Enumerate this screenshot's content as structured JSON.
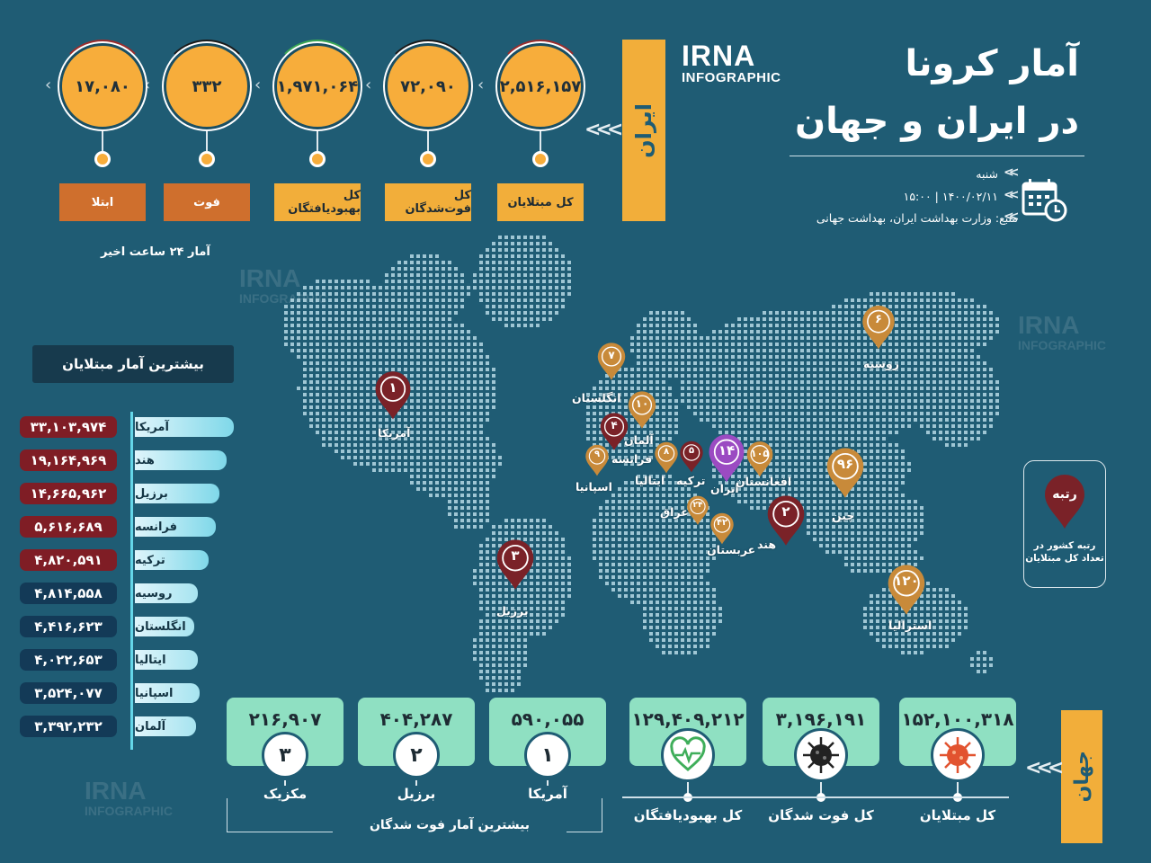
{
  "header": {
    "title_line1": "آمار کرونا",
    "title_line2": "در ایران و جهان",
    "logo_word": "IRNA",
    "logo_sub": "INFOGRAPHIC",
    "day": "شنبه",
    "datetime": "۱۴۰۰/۰۲/۱۱ | ۱۵:۰۰",
    "source": "منبع: وزارت بهداشت ایران، بهداشت جهانی",
    "calendar_icon": "calendar-clock-icon"
  },
  "iran": {
    "banner": "ایران",
    "last24_note": "آمار ۲۴ ساعت اخیر",
    "stats": [
      {
        "value": "۲,۵۱۶,۱۵۷",
        "label": "کل مبتلایان",
        "arc": "#9b2d2d",
        "label_style": "orange"
      },
      {
        "value": "۷۲,۰۹۰",
        "label": "کل فوت‌شدگان",
        "arc": "#1b1b1b",
        "label_style": "orange"
      },
      {
        "value": "۱,۹۷۱,۰۶۴",
        "label": "کل بهبودیافتگان",
        "arc": "#3aa655",
        "label_style": "orange"
      },
      {
        "value": "۳۳۲",
        "label": "فوت",
        "arc": "#1b1b1b",
        "label_style": "brown"
      },
      {
        "value": "۱۷,۰۸۰",
        "label": "ابتلا",
        "arc": "#9b2d2d",
        "label_style": "brown"
      }
    ]
  },
  "top_cases": {
    "title": "بیشترین آمار مبتلایان",
    "rows": [
      {
        "country": "آمریکا",
        "value": "۳۳,۱۰۳,۹۷۴",
        "color": "#7f1d25"
      },
      {
        "country": "هند",
        "value": "۱۹,۱۶۴,۹۶۹",
        "color": "#7f1d25"
      },
      {
        "country": "برزیل",
        "value": "۱۴,۶۶۵,۹۶۲",
        "color": "#7f1d25"
      },
      {
        "country": "فرانسه",
        "value": "۵,۶۱۶,۶۸۹",
        "color": "#7f1d25"
      },
      {
        "country": "ترکیه",
        "value": "۴,۸۲۰,۵۹۱",
        "color": "#7f1d25"
      },
      {
        "country": "روسیه",
        "value": "۴,۸۱۴,۵۵۸",
        "color": "#133a57"
      },
      {
        "country": "انگلستان",
        "value": "۴,۴۱۶,۶۲۳",
        "color": "#133a57"
      },
      {
        "country": "ایتالیا",
        "value": "۴,۰۲۲,۶۵۳",
        "color": "#133a57"
      },
      {
        "country": "اسپانیا",
        "value": "۳,۵۲۴,۰۷۷",
        "color": "#133a57"
      },
      {
        "country": "آلمان",
        "value": "۳,۳۹۲,۲۳۲",
        "color": "#133a57"
      }
    ]
  },
  "map_pins": [
    {
      "rank": "۱",
      "country": "آمریکا",
      "color": "#7a2228"
    },
    {
      "rank": "۳",
      "country": "برزیل",
      "color": "#7a2228"
    },
    {
      "rank": "۷",
      "country": "انگلستان",
      "color": "#c88a3a"
    },
    {
      "rank": "۱۰",
      "country": "آلمان",
      "color": "#c88a3a"
    },
    {
      "rank": "۴",
      "country": "فرانسه",
      "color": "#7a2228"
    },
    {
      "rank": "۹",
      "country": "اسپانیا",
      "color": "#c88a3a"
    },
    {
      "rank": "۸",
      "country": "ایتالیا",
      "color": "#c88a3a"
    },
    {
      "rank": "۵",
      "country": "ترکیه",
      "color": "#7a2228"
    },
    {
      "rank": "۱۴",
      "country": "ایران",
      "color": "#9b4bc2"
    },
    {
      "rank": "۱۰۵",
      "country": "افغانستان",
      "color": "#c88a3a"
    },
    {
      "rank": "۲۴",
      "country": "عراق",
      "color": "#c88a3a"
    },
    {
      "rank": "۴۲",
      "country": "عربستان",
      "color": "#c88a3a"
    },
    {
      "rank": "۲",
      "country": "هند",
      "color": "#7a2228"
    },
    {
      "rank": "۹۶",
      "country": "چین",
      "color": "#c88a3a"
    },
    {
      "rank": "۶",
      "country": "روسیه",
      "color": "#c88a3a"
    },
    {
      "rank": "۱۲۰",
      "country": "استرالیا",
      "color": "#c88a3a"
    }
  ],
  "legend": {
    "pin_text": "رتبه",
    "description": "رتبه کشور در تعداد کل مبتلایان"
  },
  "world": {
    "banner": "جهان",
    "stats": [
      {
        "value": "۱۵۲,۱۰۰,۳۱۸",
        "label": "کل مبتلایان",
        "icon": "virus-red-icon"
      },
      {
        "value": "۳,۱۹۶,۱۹۱",
        "label": "کل فوت شدگان",
        "icon": "virus-black-icon"
      },
      {
        "value": "۱۲۹,۴۰۹,۲۱۲",
        "label": "کل بهبودیافتگان",
        "icon": "heart-pulse-icon"
      }
    ],
    "deaths_title": "بیشترین آمار فوت شدگان",
    "deaths": [
      {
        "rank": "۱",
        "country": "آمریکا",
        "value": "۵۹۰,۰۵۵"
      },
      {
        "rank": "۲",
        "country": "برزیل",
        "value": "۴۰۴,۲۸۷"
      },
      {
        "rank": "۳",
        "country": "مکزیک",
        "value": "۲۱۶,۹۰۷"
      }
    ]
  }
}
